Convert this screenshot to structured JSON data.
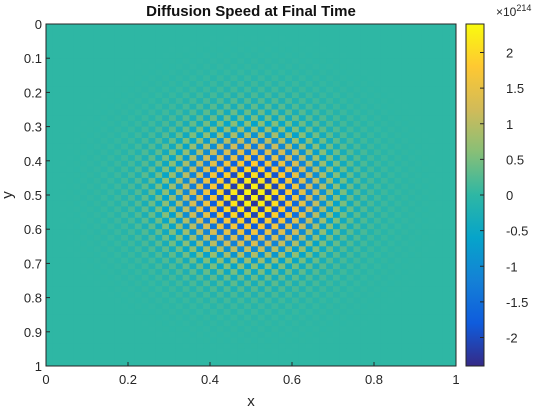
{
  "chart_data": {
    "type": "heatmap",
    "title": "Diffusion Speed at Final Time",
    "xlabel": "x",
    "ylabel": "y",
    "xlim": [
      0,
      1
    ],
    "ylim": [
      0,
      1
    ],
    "y_direction": "reversed",
    "x_ticks": [
      "0",
      "0.2",
      "0.4",
      "0.6",
      "0.8",
      "1"
    ],
    "x_tick_values": [
      0,
      0.2,
      0.4,
      0.6,
      0.8,
      1
    ],
    "y_ticks": [
      "0",
      "0.1",
      "0.2",
      "0.3",
      "0.4",
      "0.5",
      "0.6",
      "0.7",
      "0.8",
      "0.9",
      "1"
    ],
    "y_tick_values": [
      0,
      0.1,
      0.2,
      0.3,
      0.4,
      0.5,
      0.6,
      0.7,
      0.8,
      0.9,
      1
    ],
    "colormap": "parula",
    "colormap_stops": [
      "#352A87",
      "#0F5CDD",
      "#1481D6",
      "#06A4CA",
      "#2EB7A4",
      "#87BF77",
      "#D1BB59",
      "#FEC832",
      "#F9FB0E"
    ],
    "colorbar": {
      "exponent_base": "×10",
      "exponent": "214",
      "range": [
        -2.4,
        2.4
      ],
      "ticks": [
        "2",
        "1.5",
        "1",
        "0.5",
        "0",
        "-0.5",
        "-1",
        "-1.5",
        "-2"
      ],
      "tick_values": [
        2,
        1.5,
        1,
        0.5,
        0,
        -0.5,
        -1,
        -1.5,
        -2
      ]
    },
    "pattern": {
      "description": "checkerboard oscillation centered at (0.5, 0.5), amplitude peaks near ±2.3 at the center and decays to ~0 toward the edges",
      "grid_cells": 60,
      "center": [
        0.5,
        0.5
      ],
      "peak_amplitude": 2.3,
      "gaussian_width": 0.13,
      "background_value": 0
    }
  }
}
